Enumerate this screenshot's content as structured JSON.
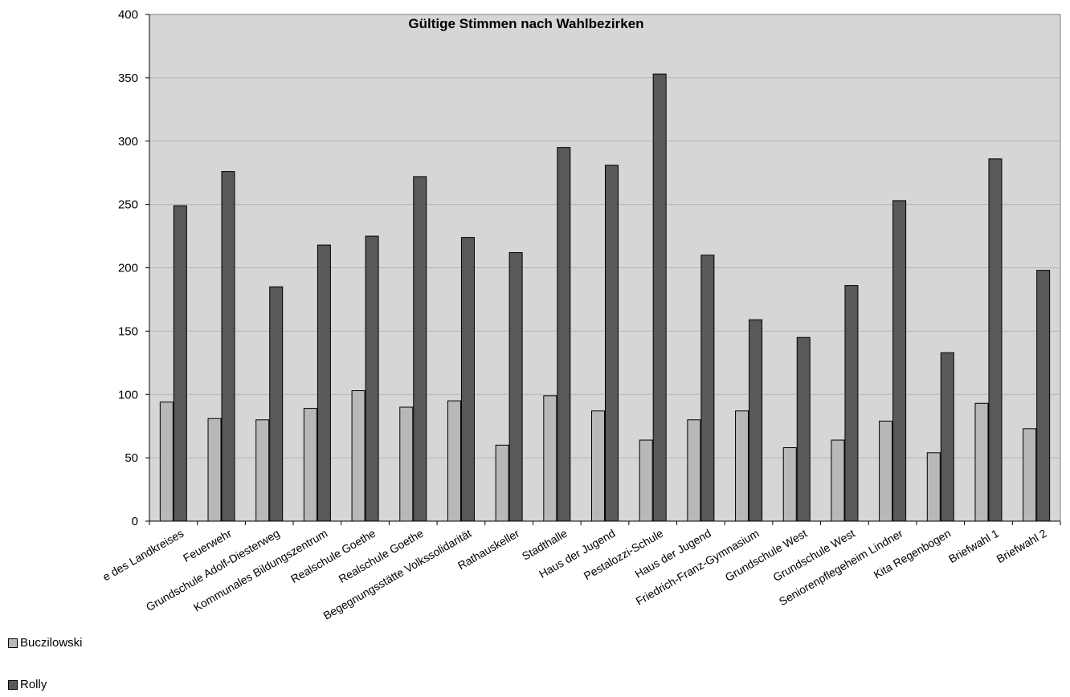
{
  "chart_data": {
    "type": "bar",
    "title": "Gültige Stimmen nach Wahlbezirken",
    "xlabel": "",
    "ylabel": "",
    "ylim": [
      0,
      400
    ],
    "yticks": [
      0,
      50,
      100,
      150,
      200,
      250,
      300,
      350,
      400
    ],
    "grid": true,
    "legend_position": "bottom-left",
    "categories": [
      "e des Landkreises",
      "Feuerwehr",
      "Grundschule Adolf-Diesterweg",
      "Kommunales Bildungszentrum",
      "Realschule Goethe",
      "Realschule Goethe",
      "Begegnungsstätte Volkssolidarität",
      "Rathauskeller",
      "Stadthalle",
      "Haus der Jugend",
      "Pestalozzi-Schule",
      "Haus der Jugend",
      "Friedrich-Franz-Gymnasium",
      "Grundschule West",
      "Grundschule West",
      "Seniorenpflegeheim Lindner",
      "Kita Regenbogen",
      "Briefwahl 1",
      "Briefwahl 2"
    ],
    "series": [
      {
        "name": "Buczilowski",
        "color": "#b8b8b8",
        "values": [
          94,
          81,
          80,
          89,
          103,
          90,
          95,
          60,
          99,
          87,
          64,
          80,
          87,
          58,
          64,
          79,
          54,
          93,
          73
        ]
      },
      {
        "name": "Rolly",
        "color": "#595959",
        "values": [
          249,
          276,
          185,
          218,
          225,
          272,
          224,
          212,
          295,
          281,
          353,
          210,
          159,
          145,
          186,
          253,
          133,
          286,
          198
        ]
      }
    ],
    "plot_background": "#d6d6d6",
    "grid_color": "#b4b4b4"
  }
}
